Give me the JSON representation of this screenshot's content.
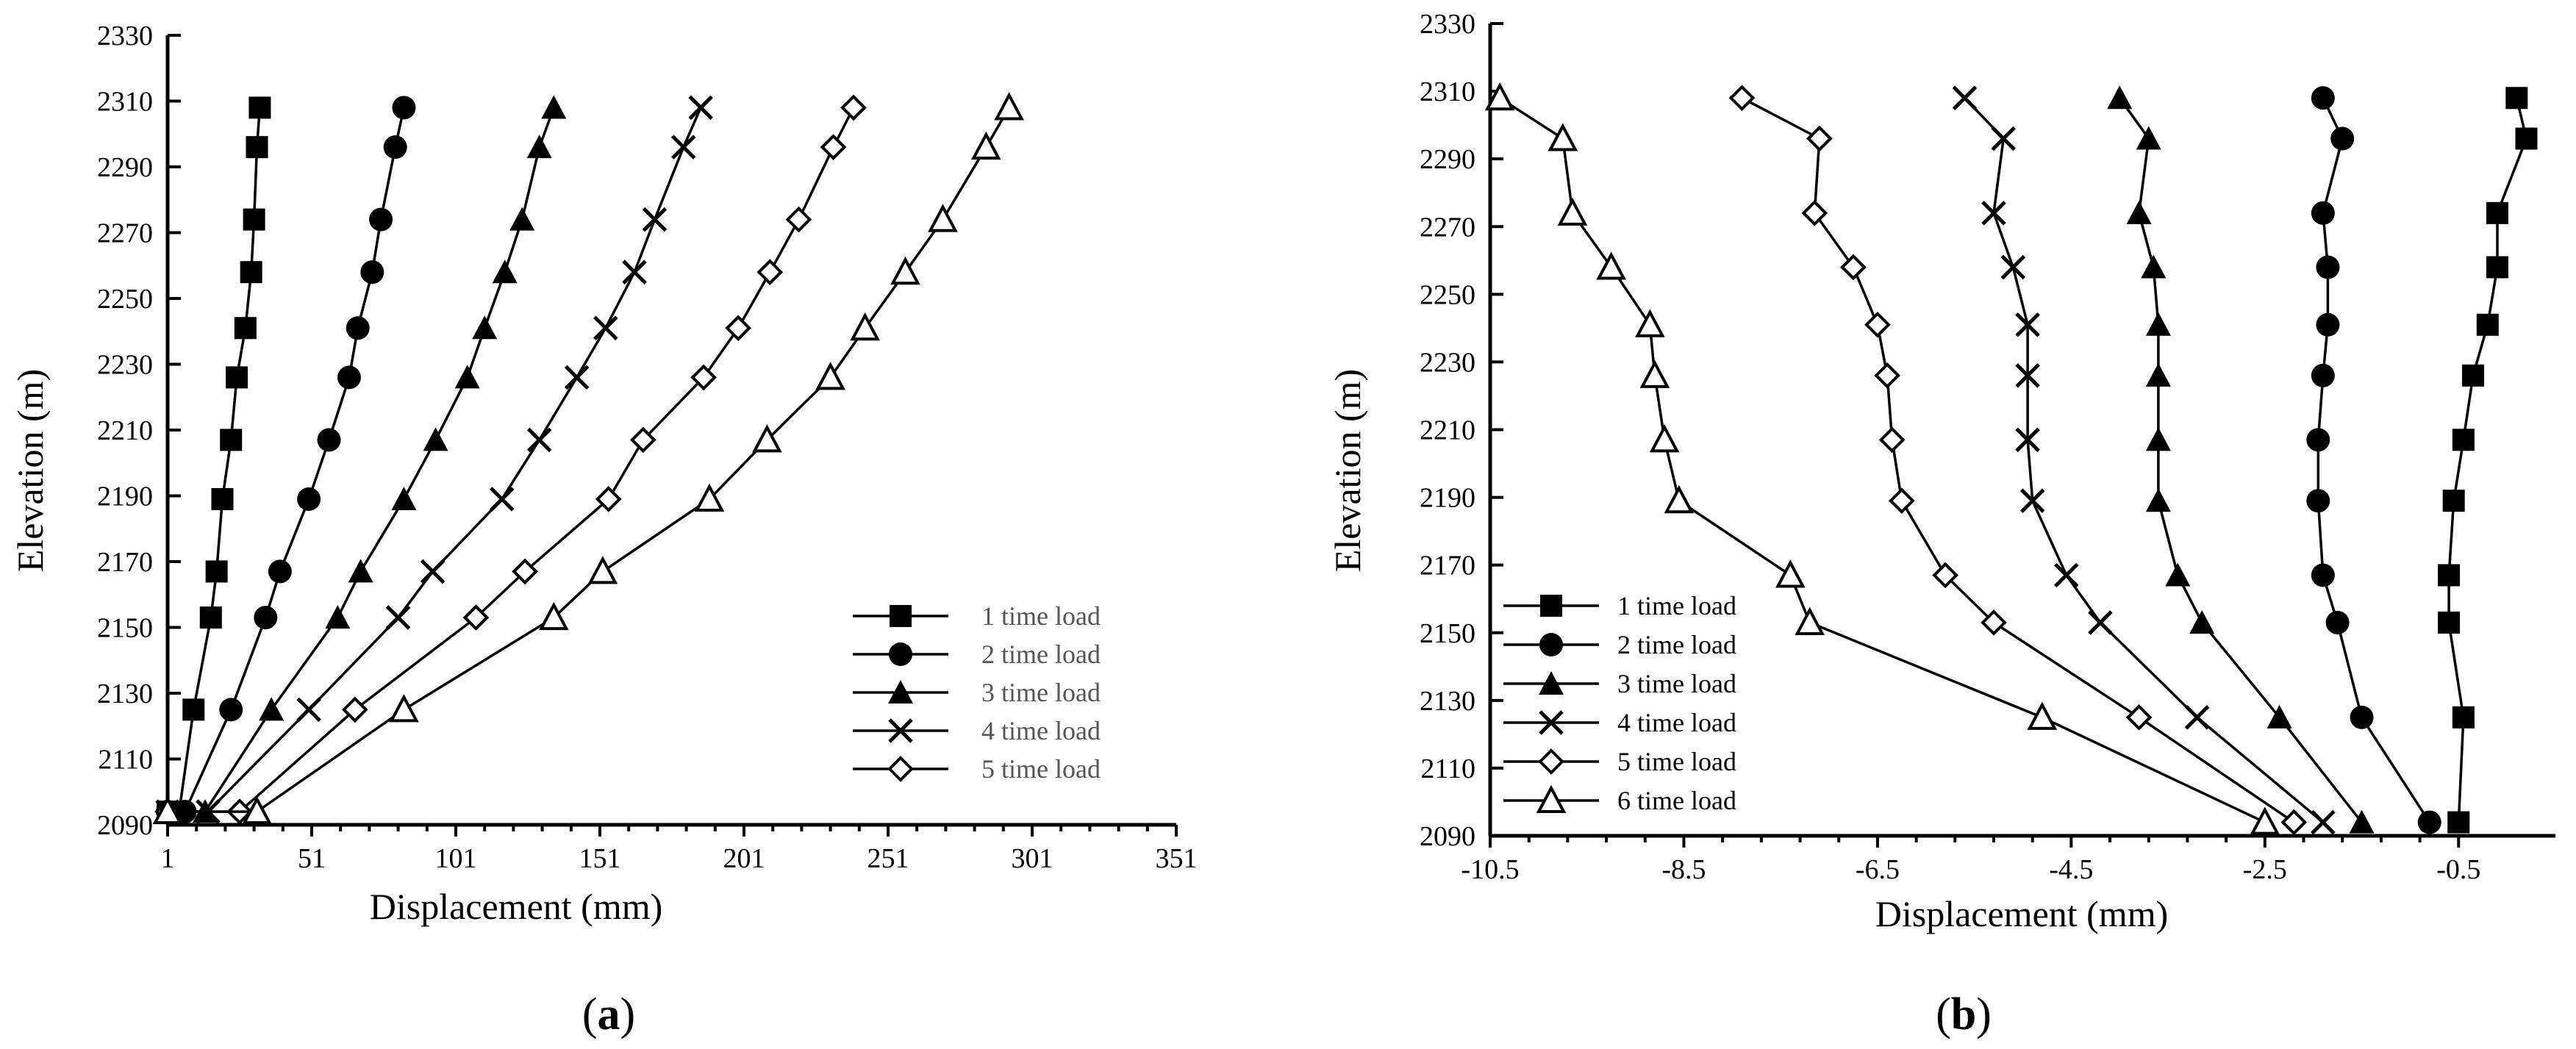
{
  "chart_data": [
    {
      "type": "line",
      "panel_label": "a",
      "xlabel": "Displacement (mm)",
      "ylabel": "Elevation (m)",
      "xlim": [
        1,
        351
      ],
      "ylim": [
        2090,
        2330
      ],
      "x_ticks": [
        1,
        51,
        101,
        151,
        201,
        251,
        301,
        351
      ],
      "y_ticks": [
        2090,
        2110,
        2130,
        2150,
        2170,
        2190,
        2210,
        2230,
        2250,
        2270,
        2290,
        2310,
        2330
      ],
      "x_tick_labels": [
        "1",
        "51",
        "101",
        "151",
        "201",
        "251",
        "301",
        "351"
      ],
      "y_tick_labels": [
        "2090",
        "2110",
        "2130",
        "2150",
        "2170",
        "2190",
        "2210",
        "2230",
        "2250",
        "2270",
        "2290",
        "2310",
        "2330"
      ],
      "grid": false,
      "legend_position": "bottom-right",
      "legend_text_color": "#555555",
      "series": [
        {
          "name": "1 time load",
          "marker": "square-filled",
          "points": [
            [
              1,
              2094
            ],
            [
              5,
              2094
            ],
            [
              10,
              2125
            ],
            [
              16,
              2153
            ],
            [
              18,
              2167
            ],
            [
              20,
              2189
            ],
            [
              23,
              2207
            ],
            [
              25,
              2226
            ],
            [
              28,
              2241
            ],
            [
              30,
              2258
            ],
            [
              31,
              2274
            ],
            [
              32,
              2296
            ],
            [
              33,
              2308
            ]
          ]
        },
        {
          "name": "2 time load",
          "marker": "circle-filled",
          "points": [
            [
              1,
              2094
            ],
            [
              7,
              2094
            ],
            [
              23,
              2125
            ],
            [
              35,
              2153
            ],
            [
              40,
              2167
            ],
            [
              50,
              2189
            ],
            [
              57,
              2207
            ],
            [
              64,
              2226
            ],
            [
              67,
              2241
            ],
            [
              72,
              2258
            ],
            [
              75,
              2274
            ],
            [
              80,
              2296
            ],
            [
              83,
              2308
            ]
          ]
        },
        {
          "name": "3 time load",
          "marker": "triangle-filled",
          "points": [
            [
              1,
              2094
            ],
            [
              14,
              2094
            ],
            [
              37,
              2125
            ],
            [
              60,
              2153
            ],
            [
              68,
              2167
            ],
            [
              83,
              2189
            ],
            [
              94,
              2207
            ],
            [
              105,
              2226
            ],
            [
              111,
              2241
            ],
            [
              118,
              2258
            ],
            [
              124,
              2274
            ],
            [
              130,
              2296
            ],
            [
              135,
              2308
            ]
          ]
        },
        {
          "name": "4 time load",
          "marker": "x",
          "points": [
            [
              1,
              2094
            ],
            [
              15,
              2094
            ],
            [
              50,
              2125
            ],
            [
              81,
              2153
            ],
            [
              93,
              2167
            ],
            [
              117,
              2189
            ],
            [
              130,
              2207
            ],
            [
              143,
              2226
            ],
            [
              153,
              2241
            ],
            [
              163,
              2258
            ],
            [
              170,
              2274
            ],
            [
              180,
              2296
            ],
            [
              186,
              2308
            ]
          ]
        },
        {
          "name": "5 time load",
          "marker": "diamond-open",
          "points": [
            [
              1,
              2094
            ],
            [
              26,
              2094
            ],
            [
              66,
              2125
            ],
            [
              108,
              2153
            ],
            [
              125,
              2167
            ],
            [
              154,
              2189
            ],
            [
              166,
              2207
            ],
            [
              187,
              2226
            ],
            [
              199,
              2241
            ],
            [
              210,
              2258
            ],
            [
              220,
              2274
            ],
            [
              232,
              2296
            ],
            [
              239,
              2308
            ]
          ]
        },
        {
          "name": "6 time load",
          "marker": "triangle-open",
          "in_legend": false,
          "points": [
            [
              1,
              2094
            ],
            [
              32,
              2094
            ],
            [
              83,
              2125
            ],
            [
              135,
              2153
            ],
            [
              152,
              2167
            ],
            [
              189,
              2189
            ],
            [
              209,
              2207
            ],
            [
              231,
              2226
            ],
            [
              243,
              2241
            ],
            [
              257,
              2258
            ],
            [
              270,
              2274
            ],
            [
              285,
              2296
            ],
            [
              293,
              2308
            ]
          ]
        }
      ]
    },
    {
      "type": "line",
      "panel_label": "b",
      "xlabel": "Displacement (mm)",
      "ylabel": "Elevation (m)",
      "xlim": [
        -10.5,
        0.5
      ],
      "ylim": [
        2090,
        2330
      ],
      "x_ticks": [
        -10.5,
        -8.5,
        -6.5,
        -4.5,
        -2.5,
        -0.5
      ],
      "y_ticks": [
        2090,
        2110,
        2130,
        2150,
        2170,
        2190,
        2210,
        2230,
        2250,
        2270,
        2290,
        2310,
        2330
      ],
      "x_tick_labels": [
        "-10.5",
        "-8.5",
        "-6.5",
        "-4.5",
        "-2.5",
        "-0.5"
      ],
      "y_tick_labels": [
        "2090",
        "2110",
        "2130",
        "2150",
        "2170",
        "2190",
        "2210",
        "2230",
        "2250",
        "2270",
        "2290",
        "2310",
        "2330"
      ],
      "grid": false,
      "legend_position": "bottom-left",
      "legend_text_color": "#000000",
      "series": [
        {
          "name": "1 time load",
          "marker": "square-filled",
          "points": [
            [
              -0.5,
              2094
            ],
            [
              -0.45,
              2125
            ],
            [
              -0.6,
              2153
            ],
            [
              -0.6,
              2167
            ],
            [
              -0.55,
              2189
            ],
            [
              -0.45,
              2207
            ],
            [
              -0.35,
              2226
            ],
            [
              -0.2,
              2241
            ],
            [
              -0.1,
              2258
            ],
            [
              -0.1,
              2274
            ],
            [
              0.2,
              2296
            ],
            [
              0.1,
              2308
            ]
          ]
        },
        {
          "name": "2 time load",
          "marker": "circle-filled",
          "points": [
            [
              -0.8,
              2094
            ],
            [
              -1.5,
              2125
            ],
            [
              -1.75,
              2153
            ],
            [
              -1.9,
              2167
            ],
            [
              -1.95,
              2189
            ],
            [
              -1.95,
              2207
            ],
            [
              -1.9,
              2226
            ],
            [
              -1.85,
              2241
            ],
            [
              -1.85,
              2258
            ],
            [
              -1.9,
              2274
            ],
            [
              -1.7,
              2296
            ],
            [
              -1.9,
              2308
            ]
          ]
        },
        {
          "name": "3 time load",
          "marker": "triangle-filled",
          "points": [
            [
              -1.5,
              2094
            ],
            [
              -2.35,
              2125
            ],
            [
              -3.15,
              2153
            ],
            [
              -3.4,
              2167
            ],
            [
              -3.6,
              2189
            ],
            [
              -3.6,
              2207
            ],
            [
              -3.6,
              2226
            ],
            [
              -3.6,
              2241
            ],
            [
              -3.65,
              2258
            ],
            [
              -3.8,
              2274
            ],
            [
              -3.7,
              2296
            ],
            [
              -4.0,
              2308
            ]
          ]
        },
        {
          "name": "4 time load",
          "marker": "x",
          "points": [
            [
              -1.9,
              2094
            ],
            [
              -3.2,
              2125
            ],
            [
              -4.2,
              2153
            ],
            [
              -4.55,
              2167
            ],
            [
              -4.9,
              2189
            ],
            [
              -4.95,
              2207
            ],
            [
              -4.95,
              2226
            ],
            [
              -4.95,
              2241
            ],
            [
              -5.1,
              2258
            ],
            [
              -5.3,
              2274
            ],
            [
              -5.2,
              2296
            ],
            [
              -5.6,
              2308
            ]
          ]
        },
        {
          "name": "5 time load",
          "marker": "diamond-open",
          "points": [
            [
              -2.2,
              2094
            ],
            [
              -3.8,
              2125
            ],
            [
              -5.3,
              2153
            ],
            [
              -5.8,
              2167
            ],
            [
              -6.25,
              2189
            ],
            [
              -6.35,
              2207
            ],
            [
              -6.4,
              2226
            ],
            [
              -6.5,
              2241
            ],
            [
              -6.75,
              2258
            ],
            [
              -7.15,
              2274
            ],
            [
              -7.1,
              2296
            ],
            [
              -7.9,
              2308
            ]
          ]
        },
        {
          "name": "6 time load",
          "marker": "triangle-open",
          "points": [
            [
              -2.5,
              2094
            ],
            [
              -4.8,
              2125
            ],
            [
              -7.2,
              2153
            ],
            [
              -7.4,
              2167
            ],
            [
              -8.55,
              2189
            ],
            [
              -8.7,
              2207
            ],
            [
              -8.8,
              2226
            ],
            [
              -8.85,
              2241
            ],
            [
              -9.25,
              2258
            ],
            [
              -9.65,
              2274
            ],
            [
              -9.75,
              2296
            ],
            [
              -10.4,
              2308
            ]
          ]
        }
      ]
    }
  ]
}
